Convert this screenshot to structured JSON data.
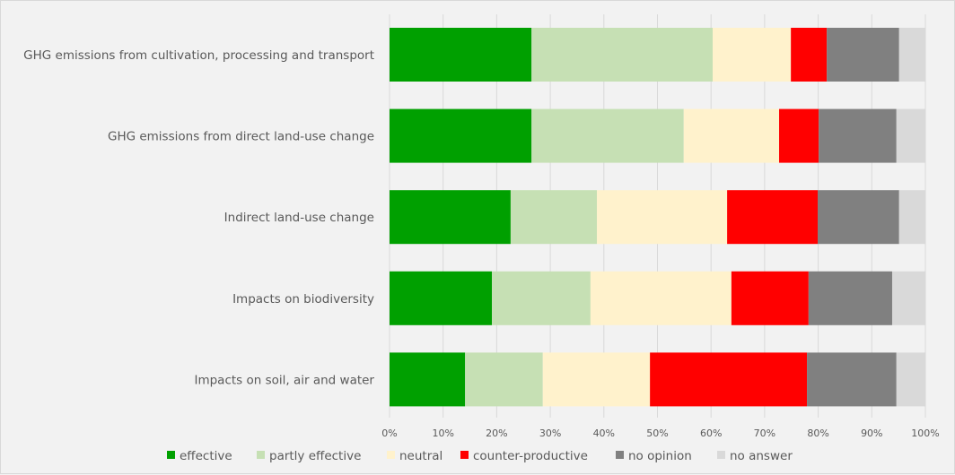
{
  "chart_data": {
    "type": "bar",
    "orientation": "horizontal",
    "stacked": "percent",
    "title": "",
    "xlabel": "",
    "ylabel": "",
    "xlim": [
      0,
      100
    ],
    "grid": true,
    "legend_position": "bottom",
    "categories": [
      "GHG emissions from cultivation, processing and transport",
      "GHG emissions from direct land-use change",
      "Indirect land-use change",
      "Impacts on biodiversity",
      "Impacts on soil, air and water"
    ],
    "x_ticks": [
      "0%",
      "10%",
      "20%",
      "30%",
      "40%",
      "50%",
      "60%",
      "70%",
      "80%",
      "90%",
      "100%"
    ],
    "series": [
      {
        "name": "effective",
        "color": "#00a000",
        "values": [
          26.5,
          26.5,
          22.6,
          19.1,
          14.1
        ]
      },
      {
        "name": "partly effective",
        "color": "#c6e0b4",
        "values": [
          33.8,
          28.4,
          16.1,
          18.4,
          14.5
        ]
      },
      {
        "name": "neutral",
        "color": "#fff2cc",
        "values": [
          14.6,
          17.8,
          24.3,
          26.3,
          20.0
        ]
      },
      {
        "name": "counter-productive",
        "color": "#ff0000",
        "values": [
          6.7,
          7.4,
          16.9,
          14.4,
          29.3
        ]
      },
      {
        "name": "no opinion",
        "color": "#808080",
        "values": [
          13.5,
          14.5,
          15.2,
          15.6,
          16.7
        ]
      },
      {
        "name": "no answer",
        "color": "#d9d9d9",
        "values": [
          4.9,
          5.4,
          4.9,
          6.2,
          5.4
        ]
      }
    ]
  }
}
